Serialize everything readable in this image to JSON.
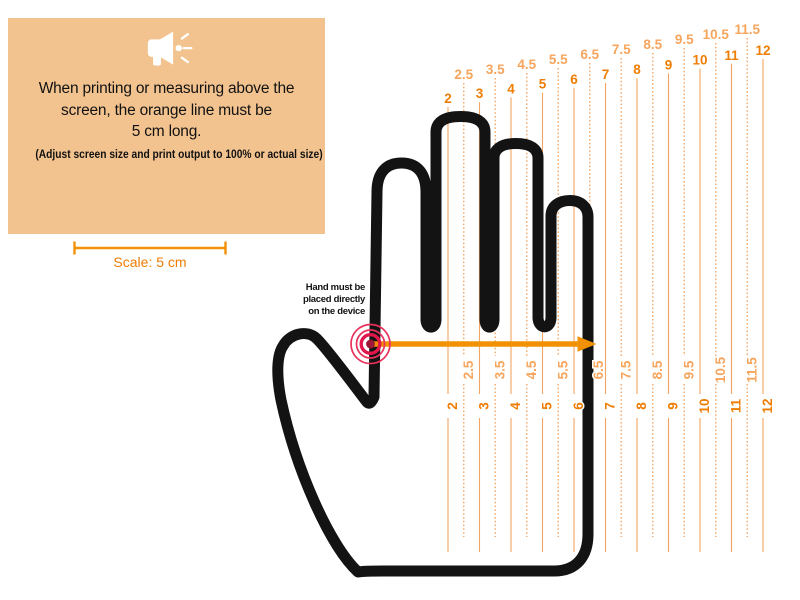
{
  "notice": {
    "icon": "megaphone-icon",
    "lines": [
      "When printing or measuring above the",
      "screen, the orange line must be",
      "5 cm long."
    ],
    "subtext": "(Adjust screen size and print output to 100% or actual size)"
  },
  "scale": {
    "label": "Scale: 5 cm"
  },
  "placement_note": {
    "lines": [
      "Hand must be",
      "placed directly",
      "on the device"
    ]
  },
  "ruler": {
    "unit": "glove size",
    "sizes": [
      "2",
      "2.5",
      "3",
      "3.5",
      "4",
      "4.5",
      "5",
      "5.5",
      "6",
      "6.5",
      "7",
      "7.5",
      "8",
      "8.5",
      "9",
      "9.5",
      "10",
      "10.5",
      "11",
      "11.5",
      "12"
    ],
    "indicated_size": "6.5"
  },
  "colors": {
    "panel_bg": "#F3C38F",
    "orange_dark": "#EE7D04",
    "orange_light": "#F7A55C",
    "ruler_line": "#F4A462",
    "arrow": "#F29104",
    "target_ring": "#E8315B",
    "target_inner": "#E2164A",
    "target_dot": "#9E1638",
    "hand": "#131313",
    "text": "#121212"
  }
}
